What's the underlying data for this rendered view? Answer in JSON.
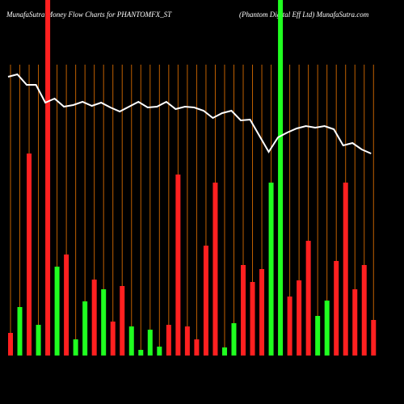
{
  "chart_data": {
    "type": "bar",
    "title": "MunafaSutra  Money Flow  Charts for PHANTOMFX_ST",
    "subtitle": "(Phantom Digital Eff Ltd) MunafaSutra.com",
    "categories": [
      null,
      null,
      null,
      null,
      null,
      null,
      null,
      null,
      null,
      null,
      null,
      null,
      null,
      null,
      null,
      null,
      null,
      null,
      null,
      null,
      null,
      null,
      null,
      null,
      null,
      null,
      null,
      null,
      null,
      null,
      null,
      null,
      null,
      null,
      null,
      null,
      null,
      null,
      null,
      null
    ],
    "ylim": [
      0,
      440
    ],
    "grid": true,
    "grid_color": "#c06000",
    "series": [
      {
        "color": "#ff2020",
        "up_color": "#20ff20",
        "values": [
          28,
          60,
          250,
          38,
          440,
          110,
          125,
          20,
          67,
          94,
          82,
          42,
          86,
          36,
          7,
          32,
          11,
          38,
          224,
          36,
          20,
          136,
          214,
          10,
          40,
          112,
          91,
          107,
          214,
          440,
          73,
          93,
          142,
          49,
          68,
          117,
          214,
          82,
          112,
          44
        ],
        "directions": [
          "down",
          "up",
          "down",
          "up",
          "down",
          "up",
          "down",
          "up",
          "up",
          "down",
          "up",
          "down",
          "down",
          "up",
          "up",
          "up",
          "up",
          "down",
          "down",
          "down",
          "down",
          "down",
          "down",
          "up",
          "up",
          "down",
          "down",
          "down",
          "up",
          "up",
          "down",
          "down",
          "down",
          "up",
          "up",
          "down",
          "down",
          "down",
          "down",
          "down"
        ]
      },
      {
        "type": "line",
        "color": "#ffffff",
        "values": [
          345,
          348,
          335,
          335,
          313,
          318,
          308,
          310,
          314,
          309,
          313,
          307,
          302,
          308,
          314,
          307,
          308,
          314,
          305,
          308,
          307,
          303,
          294,
          300,
          303,
          291,
          292,
          272,
          252,
          270,
          276,
          281,
          284,
          282,
          284,
          280,
          260,
          263,
          255,
          250
        ]
      }
    ]
  }
}
